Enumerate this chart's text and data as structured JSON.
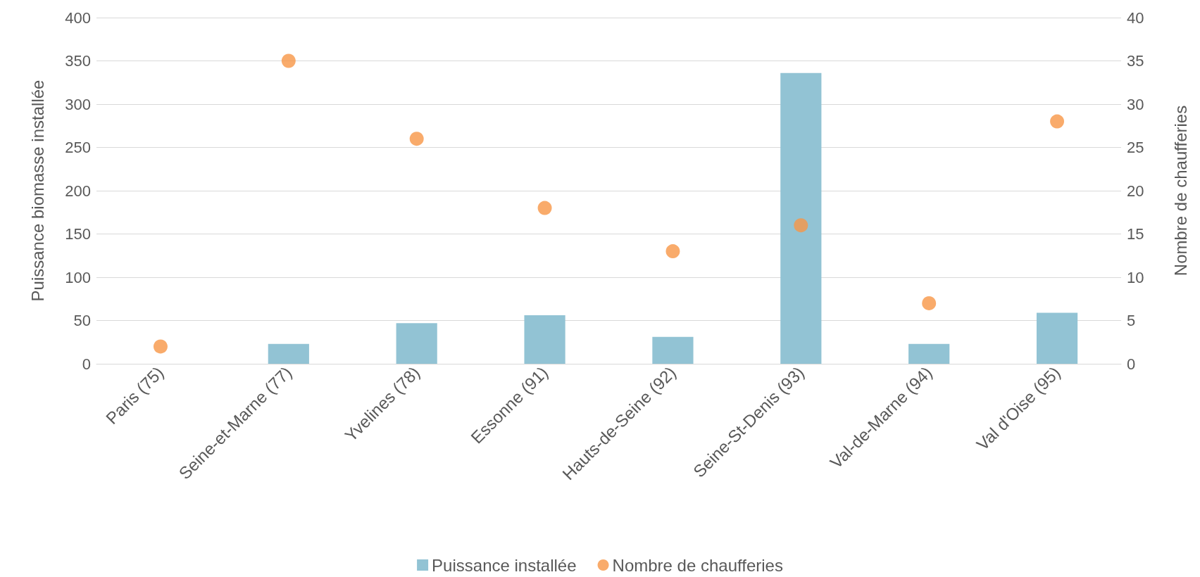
{
  "chart_data": {
    "type": "bar",
    "ylabel": "Puissance biomasse installée",
    "y2label": "Nombre de chaufferies",
    "categories": [
      "Paris (75)",
      "Seine-et-Marne (77)",
      "Yvelines (78)",
      "Essonne (91)",
      "Hauts-de-Seine (92)",
      "Seine-St-Denis (93)",
      "Val-de-Marne (94)",
      "Val d'Oise (95)"
    ],
    "series": [
      {
        "name": "Puissance installée",
        "color": "#92c3d4",
        "values": [
          0,
          23,
          47,
          56,
          31,
          336,
          23,
          59
        ]
      },
      {
        "name": "Nombre de chaufferies",
        "type": "scatter",
        "axis": "y2",
        "color": "#f79646",
        "values": [
          2,
          35,
          26,
          18,
          13,
          16,
          7,
          28
        ]
      }
    ],
    "ylim": [
      0,
      400
    ],
    "yticks": [
      0,
      50,
      100,
      150,
      200,
      250,
      300,
      350,
      400
    ],
    "y2lim": [
      0,
      40
    ],
    "y2ticks": [
      0,
      5,
      10,
      15,
      20,
      25,
      30,
      35,
      40
    ],
    "grid": "y",
    "legend": "bottom",
    "marker": "circle"
  }
}
